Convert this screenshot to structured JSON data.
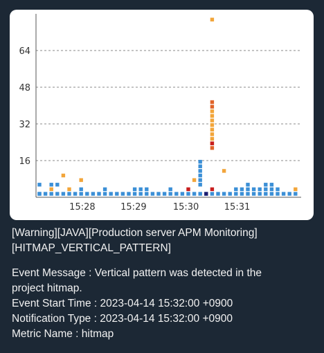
{
  "chart_data": {
    "type": "scatter",
    "title": "",
    "xlabel": "",
    "ylabel": "",
    "ylim": [
      0,
      80
    ],
    "yticks": [
      16,
      32,
      48,
      64
    ],
    "xticks": [
      "15:28",
      "15:29",
      "15:30",
      "15:31"
    ],
    "grid": "horizontal dashed",
    "colors": {
      "fast": "#3b8fd6",
      "normal": "#f2a53a",
      "slow": "#e0642a",
      "very_slow": "#c81e1e",
      "error": "#1c1c6e"
    },
    "series": [
      {
        "color": "fast",
        "points": [
          [
            0,
            1.5
          ],
          [
            0,
            5.5
          ],
          [
            2,
            5.5
          ],
          [
            3,
            5.5
          ],
          [
            7,
            3.5
          ],
          [
            11,
            3.5
          ],
          [
            16,
            3.5
          ],
          [
            17,
            3.5
          ],
          [
            18,
            3.5
          ],
          [
            22,
            3.5
          ],
          [
            27,
            5.5
          ],
          [
            27,
            7.5
          ],
          [
            27,
            9.5
          ],
          [
            27,
            11.5
          ],
          [
            27,
            13.5
          ],
          [
            27,
            15.5
          ],
          [
            33,
            3.5
          ],
          [
            34,
            3.5
          ],
          [
            35,
            3.5
          ],
          [
            35,
            5.5
          ],
          [
            36,
            3.5
          ],
          [
            37,
            3.5
          ],
          [
            38,
            3.5
          ],
          [
            38,
            5.5
          ],
          [
            39,
            3.5
          ],
          [
            39,
            5.5
          ],
          [
            40,
            3.5
          ]
        ]
      },
      {
        "color": "normal",
        "points": [
          [
            2,
            3.5
          ],
          [
            4,
            9.5
          ],
          [
            5,
            3.5
          ],
          [
            7,
            7.5
          ],
          [
            26,
            7.5
          ],
          [
            31,
            11.5
          ],
          [
            29,
            77.5
          ],
          [
            43,
            3.5
          ],
          [
            29,
            23.5
          ],
          [
            29,
            25.5
          ],
          [
            29,
            27.5
          ],
          [
            29,
            29.5
          ],
          [
            29,
            31.5
          ],
          [
            29,
            33.5
          ],
          [
            29,
            35.5
          ],
          [
            29,
            37.5
          ]
        ]
      },
      {
        "color": "slow",
        "points": [
          [
            29,
            21.5
          ],
          [
            29,
            39.5
          ],
          [
            29,
            41.5
          ]
        ]
      },
      {
        "color": "very_slow",
        "points": [
          [
            25,
            3.5
          ],
          [
            29,
            3.5
          ],
          [
            29,
            23.5
          ]
        ]
      },
      {
        "color": "error",
        "points": [
          [
            28,
            1.5
          ]
        ]
      }
    ]
  },
  "alert": {
    "heading": "[Warning][JAVA][Production server APM Monitoring]",
    "pattern": "[HITMAP_VERTICAL_PATTERN]",
    "message_line1": "Event Message : Vertical pattern was detected in the",
    "message_line2": "project hitmap.",
    "start_time": "Event Start Time : 2023-04-14 15:32:00 +0900",
    "notification_type": "Notification Type : 2023-04-14 15:32:00 +0900",
    "metric_name": "Metric Name : hitmap"
  }
}
